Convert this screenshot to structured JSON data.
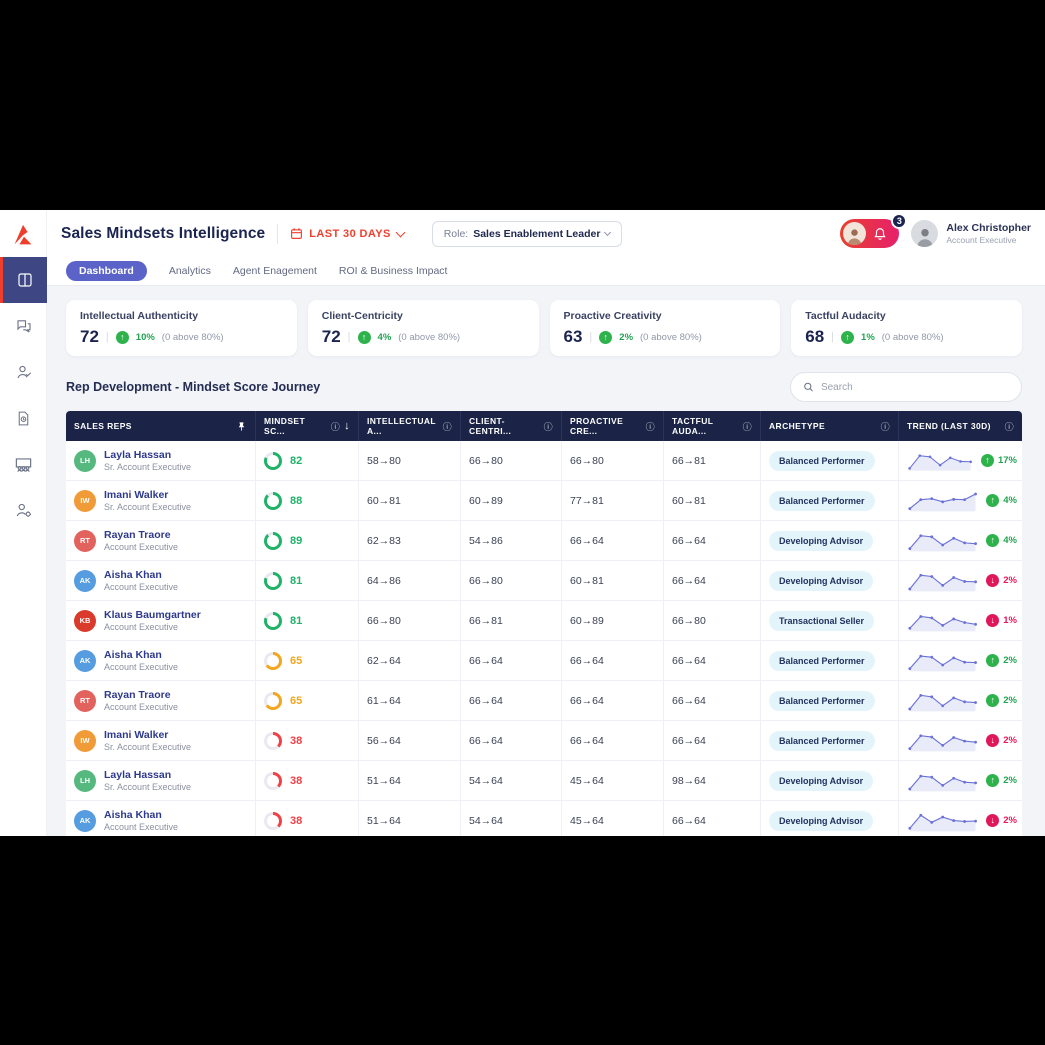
{
  "header": {
    "title": "Sales Mindsets Intelligence",
    "date_range": "LAST 30 DAYS",
    "role_label": "Role:",
    "role_value": "Sales Enablement Leader",
    "notification_count": "3",
    "user": {
      "name": "Alex Christopher",
      "role": "Account Executive"
    }
  },
  "tabs": [
    {
      "label": "Dashboard",
      "active": true
    },
    {
      "label": "Analytics",
      "active": false
    },
    {
      "label": "Agent Enagement",
      "active": false
    },
    {
      "label": "ROI & Business Impact",
      "active": false
    }
  ],
  "sidebar": {
    "items": [
      "dashboard",
      "conversations",
      "rep-review",
      "reports",
      "team-sessions",
      "user-settings"
    ]
  },
  "kpis": [
    {
      "label": "Intellectual Authenticity",
      "value": "72",
      "delta": "10%",
      "note": "(0 above 80%)"
    },
    {
      "label": "Client-Centricity",
      "value": "72",
      "delta": "4%",
      "note": "(0 above 80%)"
    },
    {
      "label": "Proactive Creativity",
      "value": "63",
      "delta": "2%",
      "note": "(0 above 80%)"
    },
    {
      "label": "Tactful Audacity",
      "value": "68",
      "delta": "1%",
      "note": "(0 above 80%)"
    }
  ],
  "section": {
    "title": "Rep Development - Mindset Score Journey",
    "search_placeholder": "Search"
  },
  "table": {
    "columns": [
      {
        "label": "SALES REPS"
      },
      {
        "label": "MINDSET SC..."
      },
      {
        "label": "INTELLECTUAL A..."
      },
      {
        "label": "CLIENT-CENTRI..."
      },
      {
        "label": "PROACTIVE CRE..."
      },
      {
        "label": "TACTFUL AUDA..."
      },
      {
        "label": "ARCHETYPE"
      },
      {
        "label": "TREND (LAST 30D)"
      }
    ],
    "rows": [
      {
        "initials": "LH",
        "name": "Layla Hassan",
        "role": "Sr. Account Executive",
        "avatar_color": "#55b87e",
        "score": 82,
        "level": "good",
        "intellectual": "58→80",
        "client": "66→80",
        "proactive": "66→80",
        "tactful": "66→81",
        "archetype": "Balanced Performer",
        "trend_dir": "up",
        "trend_value": "17%",
        "spark": [
          8,
          85,
          78,
          28,
          72,
          50,
          48
        ]
      },
      {
        "initials": "IW",
        "name": "Imani Walker",
        "role": "Sr. Account Executive",
        "avatar_color": "#f09a38",
        "score": 88,
        "level": "good",
        "intellectual": "60→81",
        "client": "60→89",
        "proactive": "77→81",
        "tactful": "60→81",
        "archetype": "Balanced Performer",
        "trend_dir": "up",
        "trend_value": "4%",
        "spark": [
          10,
          60,
          66,
          48,
          62,
          60,
          92
        ]
      },
      {
        "initials": "RT",
        "name": "Rayan Traore",
        "role": "Account Executive",
        "avatar_color": "#e2625e",
        "score": 89,
        "level": "good",
        "intellectual": "62→83",
        "client": "54→86",
        "proactive": "66→64",
        "tactful": "66→64",
        "archetype": "Developing Advisor",
        "trend_dir": "up",
        "trend_value": "4%",
        "spark": [
          10,
          82,
          76,
          30,
          68,
          42,
          38
        ]
      },
      {
        "initials": "AK",
        "name": "Aisha Khan",
        "role": "Account Executive",
        "avatar_color": "#559de0",
        "score": 81,
        "level": "good",
        "intellectual": "64→86",
        "client": "66→80",
        "proactive": "60→81",
        "tactful": "66→64",
        "archetype": "Developing Advisor",
        "trend_dir": "down",
        "trend_value": "2%",
        "spark": [
          8,
          85,
          78,
          28,
          72,
          50,
          48
        ]
      },
      {
        "initials": "KB",
        "name": "Klaus Baumgartner",
        "role": "Account Executive",
        "avatar_color": "#da3a2c",
        "score": 81,
        "level": "good",
        "intellectual": "66→80",
        "client": "66→81",
        "proactive": "60→89",
        "tactful": "66→80",
        "archetype": "Transactional Seller",
        "trend_dir": "down",
        "trend_value": "1%",
        "spark": [
          12,
          78,
          70,
          28,
          64,
          44,
          34
        ]
      },
      {
        "initials": "AK",
        "name": "Aisha Khan",
        "role": "Account Executive",
        "avatar_color": "#559de0",
        "score": 65,
        "level": "mid",
        "intellectual": "62→64",
        "client": "66→64",
        "proactive": "66→64",
        "tactful": "66→64",
        "archetype": "Balanced Performer",
        "trend_dir": "up",
        "trend_value": "2%",
        "spark": [
          10,
          80,
          74,
          30,
          70,
          46,
          44
        ]
      },
      {
        "initials": "RT",
        "name": "Rayan Traore",
        "role": "Account Executive",
        "avatar_color": "#e2625e",
        "score": 65,
        "level": "mid",
        "intellectual": "61→64",
        "client": "66→64",
        "proactive": "66→64",
        "tactful": "66→64",
        "archetype": "Balanced Performer",
        "trend_dir": "up",
        "trend_value": "2%",
        "spark": [
          8,
          84,
          76,
          26,
          70,
          48,
          44
        ]
      },
      {
        "initials": "IW",
        "name": "Imani Walker",
        "role": "Sr. Account Executive",
        "avatar_color": "#f09a38",
        "score": 38,
        "level": "bad",
        "intellectual": "56→64",
        "client": "66→64",
        "proactive": "66→64",
        "tactful": "66→64",
        "archetype": "Balanced Performer",
        "trend_dir": "down",
        "trend_value": "2%",
        "spark": [
          10,
          82,
          75,
          28,
          72,
          52,
          46
        ]
      },
      {
        "initials": "LH",
        "name": "Layla Hassan",
        "role": "Sr. Account Executive",
        "avatar_color": "#55b87e",
        "score": 38,
        "level": "bad",
        "intellectual": "51→64",
        "client": "54→64",
        "proactive": "45→64",
        "tactful": "98→64",
        "archetype": "Developing Advisor",
        "trend_dir": "up",
        "trend_value": "2%",
        "spark": [
          8,
          80,
          74,
          28,
          68,
          46,
          42
        ]
      },
      {
        "initials": "AK",
        "name": "Aisha Khan",
        "role": "Account Executive",
        "avatar_color": "#559de0",
        "score": 38,
        "level": "bad",
        "intellectual": "51→64",
        "client": "54→64",
        "proactive": "45→64",
        "tactful": "66→64",
        "archetype": "Developing Advisor",
        "trend_dir": "down",
        "trend_value": "2%",
        "spark": [
          12,
          85,
          45,
          75,
          55,
          50,
          52
        ]
      }
    ]
  },
  "glyphs": {
    "up": "↑",
    "down": "↓",
    "info": "ⓘ",
    "sort_desc": "↓"
  },
  "colors": {
    "accent_red": "#ee3f2d",
    "navy": "#1b2450",
    "indigo": "#5b63c8",
    "score_good": "#1fb268",
    "score_mid": "#f2a51e",
    "score_bad": "#ef4146",
    "trend_up": "#22a352",
    "trend_up_badge": "#2eb24c",
    "trend_down": "#e0175b",
    "trend_down_badge": "#e0175b",
    "donut_track": "#e8eaf0",
    "spark": "#6a71d8",
    "archetype_bg": "#e4f4fb"
  }
}
